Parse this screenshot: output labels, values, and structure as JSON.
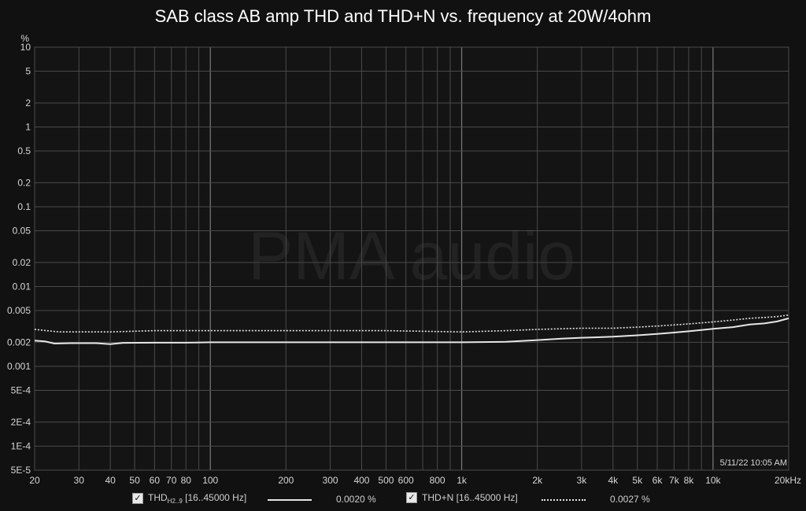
{
  "title": "SAB class AB amp THD and THD+N vs. frequency at 20W/4ohm",
  "watermark": "PMA audio",
  "timestamp": "5/11/22 10:05 AM",
  "colors": {
    "background": "#111111",
    "grid": "#4a4a4a",
    "major_grid": "#7a7a7a",
    "thd": "#e6e6e6",
    "thdn": "#e6e6e6"
  },
  "chart_data": {
    "type": "line",
    "title": "SAB class AB amp THD and THD+N vs. frequency at 20W/4ohm",
    "xlabel": "",
    "ylabel": "%",
    "xscale": "log",
    "yscale": "log",
    "xlim": [
      20,
      20000
    ],
    "ylim": [
      5e-05,
      10
    ],
    "grid": true,
    "legend": "bottom",
    "x_ticks": [
      {
        "v": 20,
        "label": "20"
      },
      {
        "v": 30,
        "label": "30"
      },
      {
        "v": 40,
        "label": "40"
      },
      {
        "v": 50,
        "label": "50"
      },
      {
        "v": 60,
        "label": "60"
      },
      {
        "v": 70,
        "label": "70"
      },
      {
        "v": 80,
        "label": "80"
      },
      {
        "v": 100,
        "label": "100"
      },
      {
        "v": 200,
        "label": "200"
      },
      {
        "v": 300,
        "label": "300"
      },
      {
        "v": 400,
        "label": "400"
      },
      {
        "v": 500,
        "label": "500"
      },
      {
        "v": 600,
        "label": "600"
      },
      {
        "v": 800,
        "label": "800"
      },
      {
        "v": 1000,
        "label": "1k"
      },
      {
        "v": 2000,
        "label": "2k"
      },
      {
        "v": 3000,
        "label": "3k"
      },
      {
        "v": 4000,
        "label": "4k"
      },
      {
        "v": 5000,
        "label": "5k"
      },
      {
        "v": 6000,
        "label": "6k"
      },
      {
        "v": 7000,
        "label": "7k"
      },
      {
        "v": 8000,
        "label": "8k"
      },
      {
        "v": 10000,
        "label": "10k"
      },
      {
        "v": 20000,
        "label": "20kHz"
      }
    ],
    "x_minor": [
      90,
      700,
      900,
      9000
    ],
    "x_major": [
      100,
      1000,
      10000
    ],
    "y_ticks": [
      {
        "v": 10,
        "label": "10"
      },
      {
        "v": 5,
        "label": "5"
      },
      {
        "v": 2,
        "label": "2"
      },
      {
        "v": 1,
        "label": "1"
      },
      {
        "v": 0.5,
        "label": "0.5"
      },
      {
        "v": 0.2,
        "label": "0.2"
      },
      {
        "v": 0.1,
        "label": "0.1"
      },
      {
        "v": 0.05,
        "label": "0.05"
      },
      {
        "v": 0.02,
        "label": "0.02"
      },
      {
        "v": 0.01,
        "label": "0.01"
      },
      {
        "v": 0.005,
        "label": "0.005"
      },
      {
        "v": 0.002,
        "label": "0.002"
      },
      {
        "v": 0.001,
        "label": "0.001"
      },
      {
        "v": 0.0005,
        "label": "5E-4"
      },
      {
        "v": 0.0002,
        "label": "2E-4"
      },
      {
        "v": 0.0001,
        "label": "1E-4"
      },
      {
        "v": 5e-05,
        "label": "5E-5"
      }
    ],
    "series": [
      {
        "name": "THD H2..9 [16..45000 Hz]",
        "style": "solid",
        "x": [
          20,
          22,
          24,
          28,
          35,
          40,
          45,
          60,
          80,
          100,
          150,
          200,
          300,
          500,
          700,
          1000,
          1500,
          2000,
          2500,
          3000,
          4000,
          5000,
          6000,
          7000,
          8000,
          10000,
          12000,
          14000,
          16000,
          18000,
          20000
        ],
        "y": [
          0.0021,
          0.00205,
          0.00193,
          0.00195,
          0.00195,
          0.0019,
          0.00197,
          0.00198,
          0.00198,
          0.002,
          0.002,
          0.002,
          0.002,
          0.002,
          0.002,
          0.002,
          0.00203,
          0.00213,
          0.00222,
          0.00228,
          0.00235,
          0.00245,
          0.00255,
          0.00265,
          0.00275,
          0.00295,
          0.0031,
          0.00335,
          0.00345,
          0.00365,
          0.004
        ]
      },
      {
        "name": "THD+N [16..45000 Hz]",
        "style": "dotted",
        "x": [
          20,
          25,
          30,
          40,
          60,
          100,
          200,
          300,
          500,
          1000,
          1500,
          2000,
          3000,
          4000,
          5000,
          6000,
          7000,
          8000,
          10000,
          12000,
          14000,
          16000,
          18000,
          20000
        ],
        "y": [
          0.0029,
          0.0027,
          0.0027,
          0.0027,
          0.0028,
          0.0028,
          0.0028,
          0.0028,
          0.0028,
          0.0027,
          0.0028,
          0.0029,
          0.003,
          0.003,
          0.0031,
          0.0032,
          0.0033,
          0.0034,
          0.0036,
          0.0038,
          0.004,
          0.0041,
          0.0042,
          0.0044
        ]
      }
    ]
  },
  "legend": [
    {
      "checked": "✓",
      "label_main": "THD",
      "label_sub": "H2..9",
      "label_rest": " [16..45000 Hz]",
      "value": "0.0020 %"
    },
    {
      "checked": "✓",
      "label_main": "THD+N [16..45000 Hz]",
      "value": "0.0027 %"
    }
  ]
}
